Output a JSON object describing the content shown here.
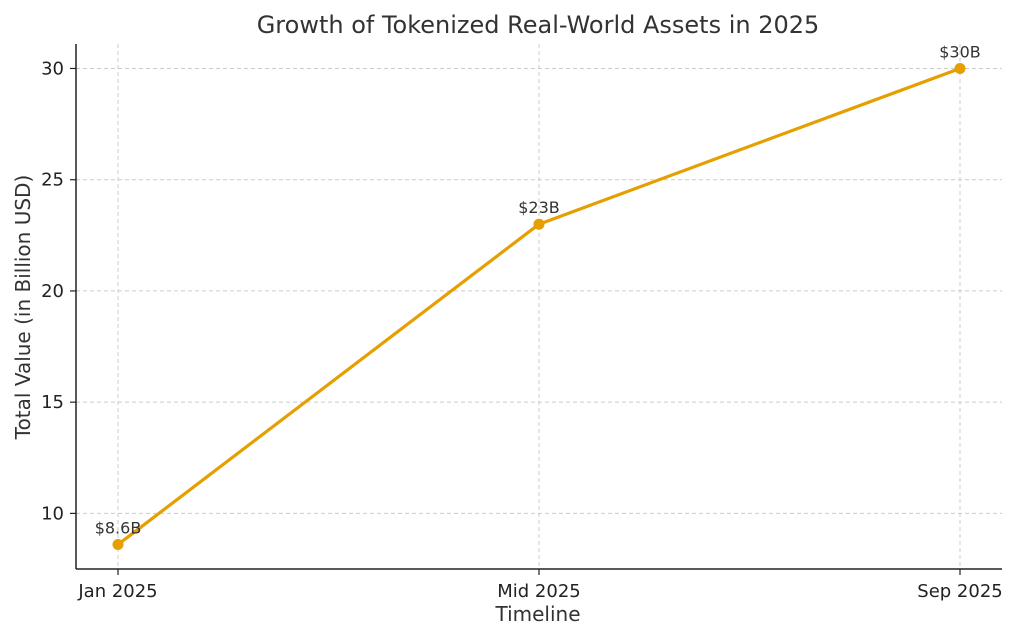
{
  "chart_data": {
    "type": "line",
    "title": "Growth of Tokenized Real-World Assets in 2025",
    "xlabel": "Timeline",
    "ylabel": "Total Value (in Billion USD)",
    "categories": [
      "Jan 2025",
      "Mid 2025",
      "Sep 2025"
    ],
    "series": [
      {
        "values": [
          8.6,
          23,
          30
        ],
        "labels": [
          "$8.6B",
          "$23B",
          "$30B"
        ],
        "color": "#E69F00"
      }
    ],
    "ylim": [
      7.5,
      31.1
    ],
    "yticks": [
      10,
      15,
      20,
      25,
      30
    ],
    "grid": true,
    "legend": "none"
  }
}
